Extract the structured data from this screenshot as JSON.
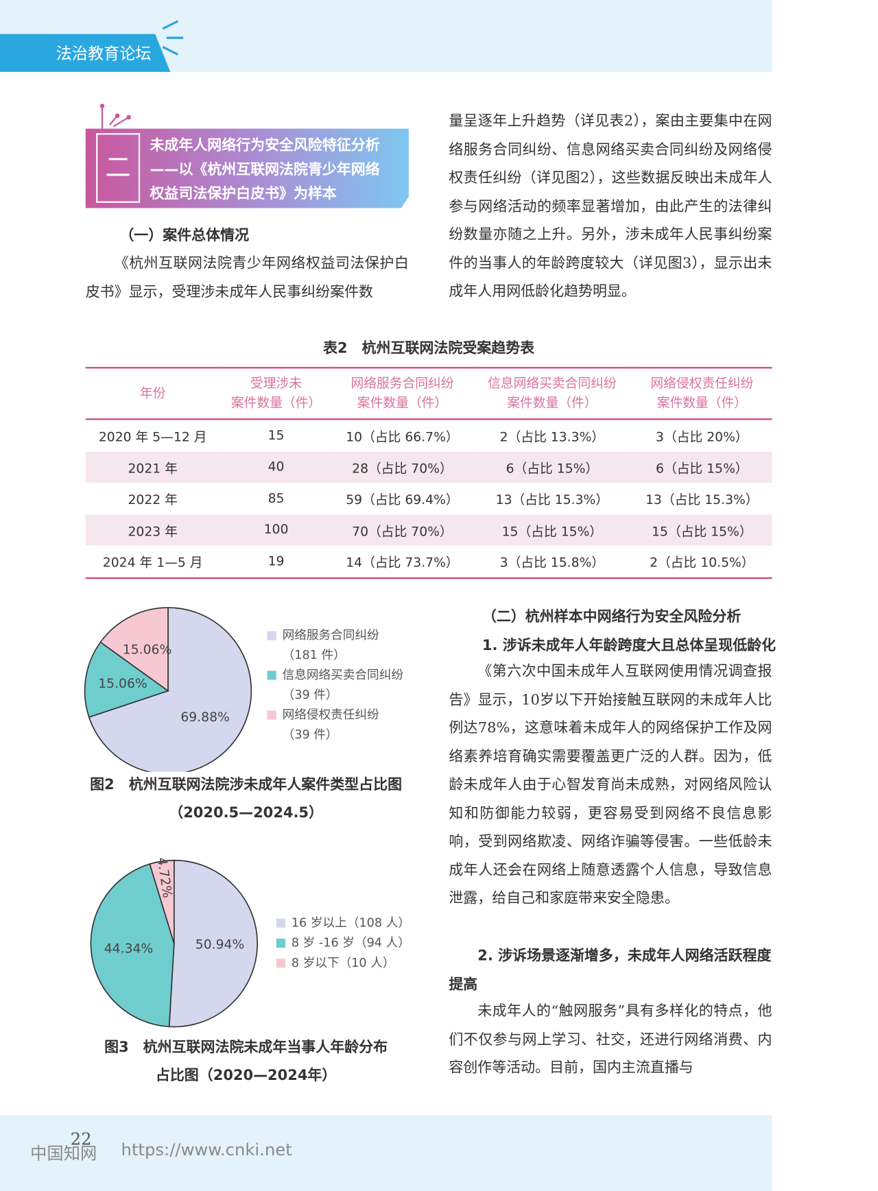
{
  "header": {
    "column": "法治教育论坛"
  },
  "section": {
    "number": "二",
    "title_lines": [
      "未成年人网络行为安全风险特征分析",
      "——以《杭州互联网法院青少年网络",
      "权益司法保护白皮书》为样本"
    ]
  },
  "part1": {
    "heading": "（一）案件总体情况",
    "text_left": "《杭州互联网法院青少年网络权益司法保护白皮书》显示，受理涉未成年人民事纠纷案件数",
    "text_right": "量呈逐年上升趋势（详见表2），案由主要集中在网络服务合同纠纷、信息网络买卖合同纠纷及网络侵权责任纠纷（详见图2），这些数据反映出未成年人参与网络活动的频率显著增加，由此产生的法律纠纷数量亦随之上升。另外，涉未成年人民事纠纷案件的当事人的年龄跨度较大（详见图3），显示出未成年人用网低龄化趋势明显。"
  },
  "table": {
    "caption": "表2　杭州互联网法院受案趋势表",
    "header": [
      [
        "年份"
      ],
      [
        "受理涉未",
        "案件数量（件）"
      ],
      [
        "网络服务合同纠纷",
        "案件数量（件）"
      ],
      [
        "信息网络买卖合同纠纷",
        "案件数量（件）"
      ],
      [
        "网络侵权责任纠纷",
        "案件数量（件）"
      ]
    ],
    "rows": [
      [
        "2020 年 5—12 月",
        "15",
        "10（占比 66.7%）",
        "2（占比 13.3%）",
        "3（占比 20%）"
      ],
      [
        "2021 年",
        "40",
        "28（占比 70%）",
        "6（占比 15%）",
        "6（占比 15%）"
      ],
      [
        "2022 年",
        "85",
        "59（占比 69.4%）",
        "13（占比 15.3%）",
        "13（占比 15.3%）"
      ],
      [
        "2023 年",
        "100",
        "70（占比 70%）",
        "15（占比 15%）",
        "15（占比 15%）"
      ],
      [
        "2024 年 1—5 月",
        "19",
        "14（占比 73.7%）",
        "3（占比 15.8%）",
        "2（占比 10.5%）"
      ]
    ]
  },
  "chart_data": [
    {
      "type": "pie",
      "title": "图2　杭州互联网法院涉未成年人案件类型占比图",
      "subtitle": "（2020.5—2024.5）",
      "categories": [
        "网络服务合同纠纷",
        "信息网络买卖合同纠纷",
        "网络侵权责任纠纷"
      ],
      "legend_notes": [
        "（181 件）",
        "（39 件）",
        "（39 件）"
      ],
      "values": [
        69.88,
        15.06,
        15.06
      ],
      "value_labels": [
        "69.88%",
        "15.06%",
        "15.06%"
      ],
      "colors": [
        "#d5d7ee",
        "#6fcdce",
        "#f6c8d2"
      ]
    },
    {
      "type": "pie",
      "title": "图3　杭州互联网法院未成年当事人年龄分布",
      "subtitle": "占比图（2020—2024年）",
      "categories": [
        "16 岁以上（108 人）",
        "8 岁 -16 岁（94 人）",
        "8 岁以下（10 人）"
      ],
      "values": [
        50.94,
        44.34,
        4.72
      ],
      "value_labels": [
        "50.94%",
        "44.34%",
        "4.72%"
      ],
      "colors": [
        "#d5d7ee",
        "#6fcdce",
        "#f6c8d2"
      ]
    }
  ],
  "part2": {
    "heading": "（二）杭州样本中网络行为安全风险分析",
    "sub1": "1. 涉诉未成年人年龄跨度大且总体呈现低龄化",
    "para1": "《第六次中国未成年人互联网使用情况调查报告》显示，10岁以下开始接触互联网的未成年人比例达78%，这意味着未成年人的网络保护工作及网络素养培育确实需要覆盖更广泛的人群。因为，低龄未成年人由于心智发育尚未成熟，对网络风险认知和防御能力较弱，更容易受到网络不良信息影响，受到网络欺凌、网络诈骗等侵害。一些低龄未成年人还会在网络上随意透露个人信息，导致信息泄露，给自己和家庭带来安全隐患。",
    "sub2": "2. 涉诉场景逐渐增多，未成年人网络活跃程度提高",
    "para2": "未成年人的“触网服务”具有多样化的特点，他们不仅参与网上学习、社交，还进行网络消费、内容创作等活动。目前，国内主流直播与"
  },
  "footer": {
    "page": "22",
    "watermark": "中国知网",
    "url": "https://www.cnki.net"
  }
}
